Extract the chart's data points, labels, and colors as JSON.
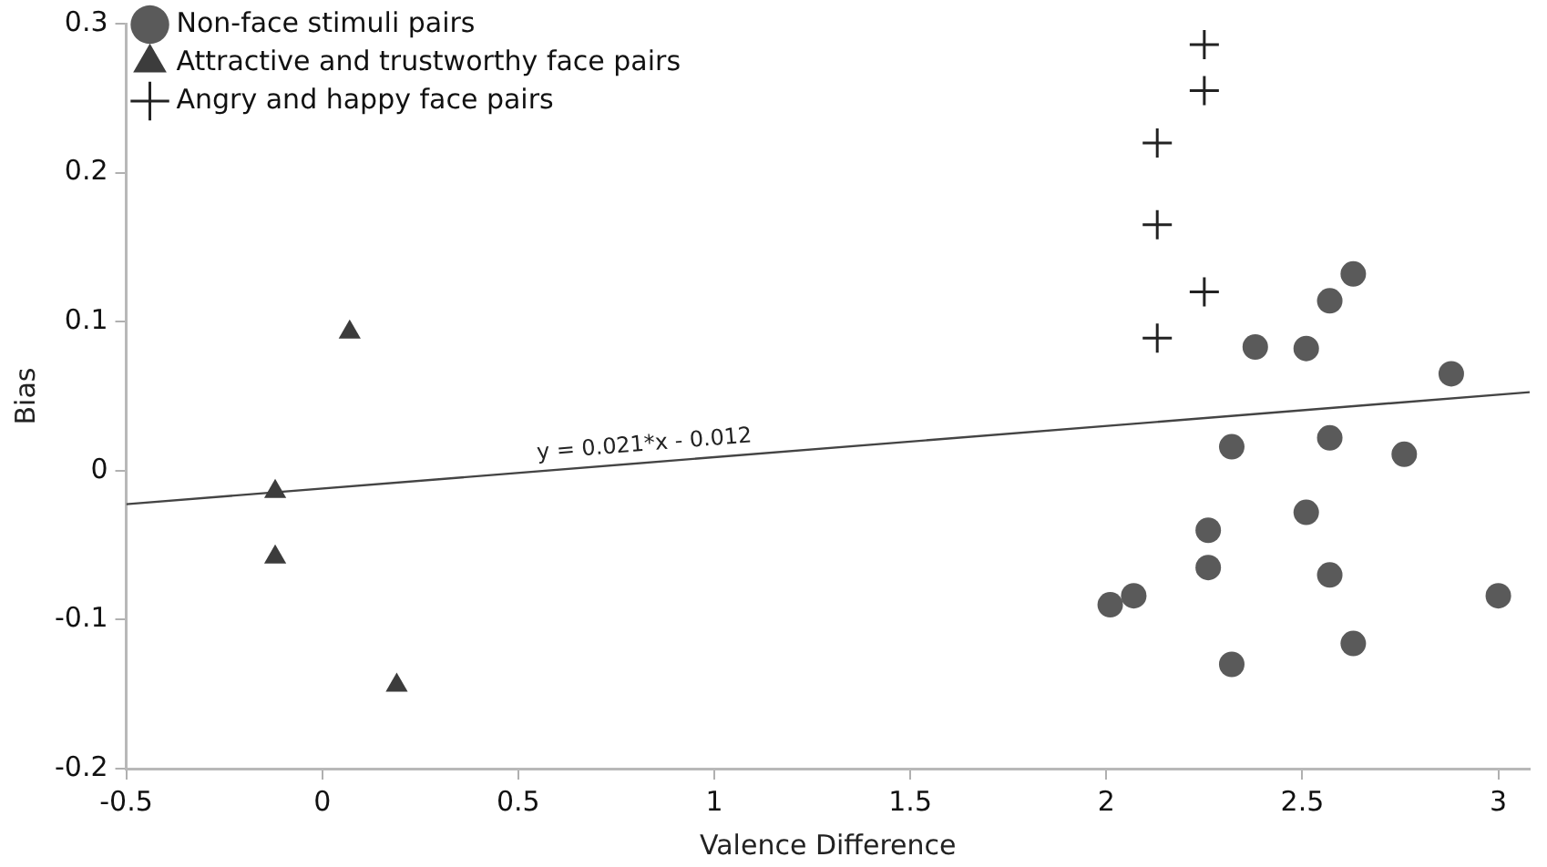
{
  "chart_data": {
    "type": "scatter",
    "xlabel": "Valence Difference",
    "ylabel": "Bias",
    "xlim": [
      -0.5,
      3.08
    ],
    "xticks": [
      -0.5,
      0,
      0.5,
      1,
      1.5,
      2,
      2.5,
      3
    ],
    "ylim": [
      -0.2,
      0.3
    ],
    "yticks": [
      -0.2,
      -0.1,
      0,
      0.1,
      0.2,
      0.3
    ],
    "grid": false,
    "legend": "top left",
    "annotations": [
      {
        "text": "y = 0.021*x - 0.012",
        "x": 0.55,
        "y": 0.003
      }
    ],
    "series": [
      {
        "name": "Non-face stimuli pairs",
        "color": "#5a5a5a",
        "marker": "circle",
        "x": [
          2.63,
          2.57,
          2.38,
          2.51,
          2.88,
          2.32,
          2.57,
          2.76,
          2.51,
          2.26,
          2.26,
          2.57,
          2.01,
          2.07,
          3.0,
          2.63,
          2.32
        ],
        "values": [
          0.132,
          0.114,
          0.083,
          0.082,
          0.065,
          0.016,
          0.022,
          0.011,
          -0.028,
          -0.04,
          -0.065,
          -0.07,
          -0.09,
          -0.084,
          -0.084,
          -0.116,
          -0.13
        ]
      },
      {
        "name": "Attractive and trustworthy face pairs",
        "color": "#3c3c3c",
        "marker": "triangle",
        "x": [
          0.07,
          -0.12,
          -0.12,
          0.19
        ],
        "values": [
          0.093,
          -0.014,
          -0.058,
          -0.144
        ]
      },
      {
        "name": "Angry and happy face pairs",
        "color": "#222222",
        "marker": "cross",
        "x": [
          2.25,
          2.25,
          2.13,
          2.13,
          2.25,
          2.13
        ],
        "values": [
          0.286,
          0.255,
          0.22,
          0.165,
          0.12,
          0.089
        ]
      },
      {
        "type": "line",
        "color": "#444444",
        "marker": "none",
        "line_style": "solid",
        "x": [
          -0.5,
          3.08
        ],
        "values": [
          -0.0225,
          0.0527
        ]
      }
    ]
  }
}
